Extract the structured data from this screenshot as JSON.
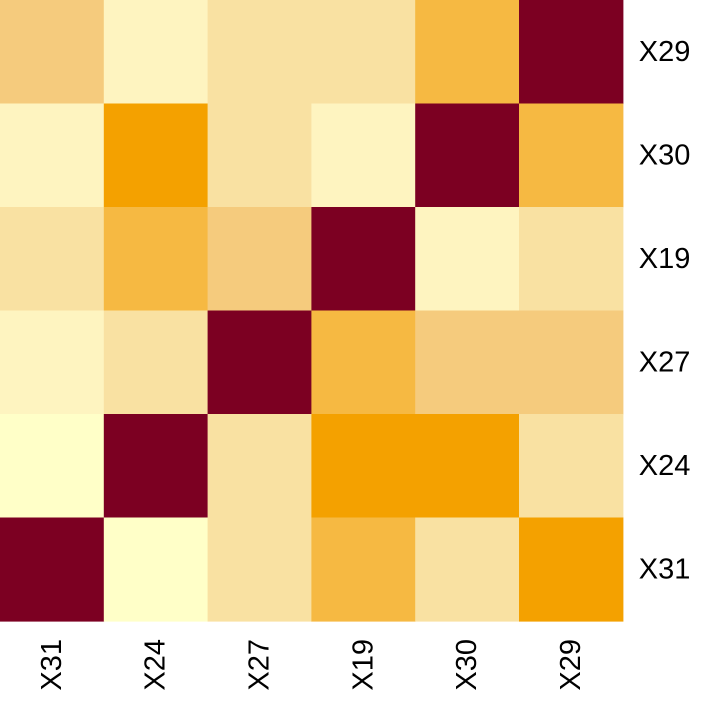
{
  "chart_data": {
    "type": "heatmap",
    "x_categories": [
      "X31",
      "X24",
      "X27",
      "X19",
      "X30",
      "X29"
    ],
    "y_categories_top_to_bottom": [
      "X29",
      "X30",
      "X19",
      "X27",
      "X24",
      "X31"
    ],
    "level_colors": [
      "#FFFFC8",
      "#FEF4C0",
      "#F9E1A2",
      "#F5CB7D",
      "#F6B942",
      "#F4A100",
      "#7C0022"
    ],
    "levels_top_to_bottom": [
      [
        3,
        1,
        2,
        2,
        4,
        6
      ],
      [
        1,
        5,
        2,
        1,
        6,
        4
      ],
      [
        2,
        4,
        3,
        6,
        1,
        2
      ],
      [
        1,
        2,
        6,
        4,
        3,
        3
      ],
      [
        0,
        6,
        2,
        5,
        5,
        2
      ],
      [
        6,
        0,
        2,
        4,
        2,
        5
      ]
    ],
    "title": "",
    "xlabel": "",
    "ylabel": "",
    "legend": "none",
    "grid": false
  }
}
